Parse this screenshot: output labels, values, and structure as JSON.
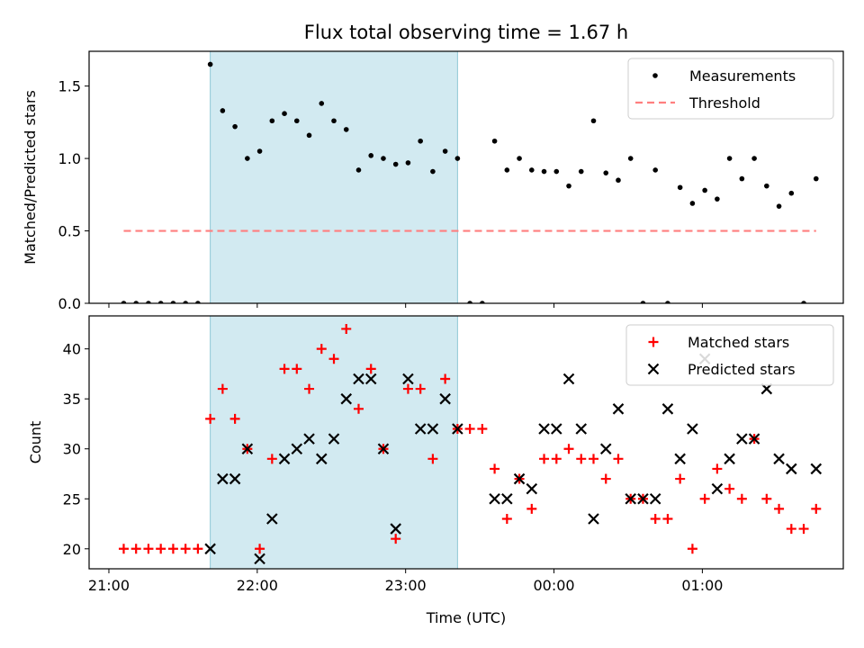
{
  "title": "Flux total observing time = 1.67 h",
  "colors": {
    "measurement": "#000000",
    "threshold": "#ff7f7f",
    "matched": "#ff0000",
    "predicted": "#000000",
    "shade": "#add8e6"
  },
  "chart_data": [
    {
      "type": "scatter",
      "ylabel": "Matched/Predicted stars",
      "ylim": [
        0,
        1.74
      ],
      "yticks": [
        0.0,
        0.5,
        1.0,
        1.5
      ],
      "ytick_labels": [
        "0.0",
        "0.5",
        "1.0",
        "1.5"
      ],
      "xlim": [
        "20:52",
        "25:57"
      ],
      "shaded_span": [
        "21:41",
        "23:21"
      ],
      "legend": {
        "placement": "top-right",
        "entries": [
          "Measurements",
          "Threshold"
        ]
      },
      "series": [
        {
          "name": "Measurements",
          "marker": "dot",
          "x": [
            "21:06",
            "21:11",
            "21:16",
            "21:21",
            "21:26",
            "21:31",
            "21:36",
            "21:41",
            "21:46",
            "21:51",
            "21:56",
            "22:01",
            "22:06",
            "22:11",
            "22:16",
            "22:21",
            "22:26",
            "22:31",
            "22:36",
            "22:41",
            "22:46",
            "22:51",
            "22:56",
            "23:01",
            "23:06",
            "23:11",
            "23:16",
            "23:21",
            "23:26",
            "23:31",
            "23:36",
            "23:41",
            "23:46",
            "23:51",
            "23:56",
            "24:01",
            "24:06",
            "24:11",
            "24:16",
            "24:21",
            "24:26",
            "24:31",
            "24:36",
            "24:41",
            "24:46",
            "24:51",
            "24:56",
            "25:01",
            "25:06",
            "25:11",
            "25:16",
            "25:21",
            "25:26",
            "25:31",
            "25:36",
            "25:41",
            "25:46"
          ],
          "y": [
            0,
            0,
            0,
            0,
            0,
            0,
            0,
            1.65,
            1.33,
            1.22,
            1.0,
            1.05,
            1.26,
            1.31,
            1.26,
            1.16,
            1.38,
            1.26,
            1.2,
            0.92,
            1.02,
            1.0,
            0.96,
            0.97,
            1.12,
            0.91,
            1.05,
            1.0,
            0,
            0,
            1.12,
            0.92,
            1.0,
            0.92,
            0.91,
            0.91,
            0.81,
            0.91,
            1.26,
            0.9,
            0.85,
            1.0,
            0,
            0.92,
            0,
            0.8,
            0.69,
            0.78,
            0.72,
            1.0,
            0.86,
            1.0,
            0.81,
            0.67,
            0.76,
            0,
            0.86
          ]
        },
        {
          "name": "Threshold",
          "style": "dashed",
          "x": [
            "21:06",
            "25:46"
          ],
          "y": [
            0.5,
            0.5
          ]
        }
      ]
    },
    {
      "type": "scatter",
      "ylabel": "Count",
      "xlabel": "Time (UTC)",
      "ylim": [
        18,
        43.3
      ],
      "yticks": [
        20,
        25,
        30,
        35,
        40
      ],
      "ytick_labels": [
        "20",
        "25",
        "30",
        "35",
        "40"
      ],
      "xlim": [
        "20:52",
        "25:57"
      ],
      "xticks": [
        "21:00",
        "22:00",
        "23:00",
        "24:00",
        "25:00"
      ],
      "xtick_labels": [
        "21:00",
        "22:00",
        "23:00",
        "00:00",
        "01:00"
      ],
      "shaded_span": [
        "21:41",
        "23:21"
      ],
      "legend": {
        "placement": "top-right",
        "entries": [
          "Matched stars",
          "Predicted stars"
        ]
      },
      "series": [
        {
          "name": "Matched stars",
          "marker": "plus",
          "x": [
            "21:06",
            "21:11",
            "21:16",
            "21:21",
            "21:26",
            "21:31",
            "21:36",
            "21:41",
            "21:46",
            "21:51",
            "21:56",
            "22:01",
            "22:06",
            "22:11",
            "22:16",
            "22:21",
            "22:26",
            "22:31",
            "22:36",
            "22:41",
            "22:46",
            "22:51",
            "22:56",
            "23:01",
            "23:06",
            "23:11",
            "23:16",
            "23:21",
            "23:26",
            "23:31",
            "23:36",
            "23:41",
            "23:46",
            "23:51",
            "23:56",
            "24:01",
            "24:06",
            "24:11",
            "24:16",
            "24:21",
            "24:26",
            "24:31",
            "24:36",
            "24:41",
            "24:46",
            "24:51",
            "24:56",
            "25:01",
            "25:06",
            "25:11",
            "25:16",
            "25:21",
            "25:26",
            "25:31",
            "25:36",
            "25:41",
            "25:46"
          ],
          "y": [
            20,
            20,
            20,
            20,
            20,
            20,
            20,
            33,
            36,
            33,
            30,
            20,
            29,
            38,
            38,
            36,
            40,
            39,
            42,
            34,
            38,
            30,
            21,
            36,
            36,
            29,
            37,
            32,
            32,
            32,
            28,
            23,
            27,
            24,
            29,
            29,
            30,
            29,
            29,
            27,
            29,
            25,
            25,
            23,
            23,
            27,
            20,
            25,
            28,
            26,
            25,
            31,
            25,
            24,
            22,
            22,
            24
          ]
        },
        {
          "name": "Predicted stars",
          "marker": "x",
          "x": [
            "21:41",
            "21:46",
            "21:51",
            "21:56",
            "22:01",
            "22:06",
            "22:11",
            "22:16",
            "22:21",
            "22:26",
            "22:31",
            "22:36",
            "22:41",
            "22:46",
            "22:51",
            "22:56",
            "23:01",
            "23:06",
            "23:11",
            "23:16",
            "23:21",
            "23:36",
            "23:41",
            "23:46",
            "23:51",
            "23:56",
            "24:01",
            "24:06",
            "24:11",
            "24:16",
            "24:21",
            "24:26",
            "24:31",
            "24:36",
            "24:41",
            "24:46",
            "24:51",
            "24:56",
            "25:01",
            "25:06",
            "25:11",
            "25:16",
            "25:21",
            "25:26",
            "25:31",
            "25:36",
            "25:46"
          ],
          "y": [
            20,
            27,
            27,
            30,
            19,
            23,
            29,
            30,
            31,
            29,
            31,
            35,
            37,
            37,
            30,
            22,
            37,
            32,
            32,
            35,
            32,
            25,
            25,
            27,
            26,
            32,
            32,
            37,
            32,
            23,
            30,
            34,
            25,
            25,
            25,
            34,
            29,
            32,
            39,
            26,
            29,
            31,
            31,
            36,
            29,
            28,
            28
          ]
        }
      ]
    }
  ]
}
